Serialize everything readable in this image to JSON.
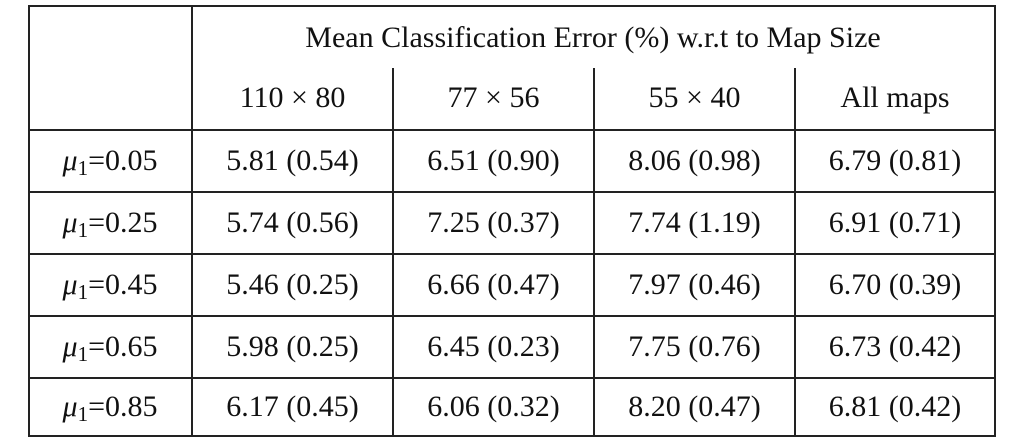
{
  "table": {
    "title": "Mean Classification Error (%) w.r.t to Map Size",
    "columns": [
      "110 × 80",
      "77 × 56",
      "55 × 40",
      "All maps"
    ],
    "rows": [
      {
        "symbol": "μ",
        "sub": "1",
        "param": "=0.05",
        "cells": [
          "5.81 (0.54)",
          "6.51 (0.90)",
          "8.06 (0.98)",
          "6.79 (0.81)"
        ]
      },
      {
        "symbol": "μ",
        "sub": "1",
        "param": "=0.25",
        "cells": [
          "5.74 (0.56)",
          "7.25 (0.37)",
          "7.74 (1.19)",
          "6.91 (0.71)"
        ]
      },
      {
        "symbol": "μ",
        "sub": "1",
        "param": "=0.45",
        "cells": [
          "5.46 (0.25)",
          "6.66 (0.47)",
          "7.97 (0.46)",
          "6.70 (0.39)"
        ]
      },
      {
        "symbol": "μ",
        "sub": "1",
        "param": "=0.65",
        "cells": [
          "5.98 (0.25)",
          "6.45 (0.23)",
          "7.75 (0.76)",
          "6.73 (0.42)"
        ]
      },
      {
        "symbol": "μ",
        "sub": "1",
        "param": "=0.85",
        "cells": [
          "6.17 (0.45)",
          "6.06 (0.32)",
          "8.20 (0.47)",
          "6.81 (0.42)"
        ]
      }
    ]
  }
}
